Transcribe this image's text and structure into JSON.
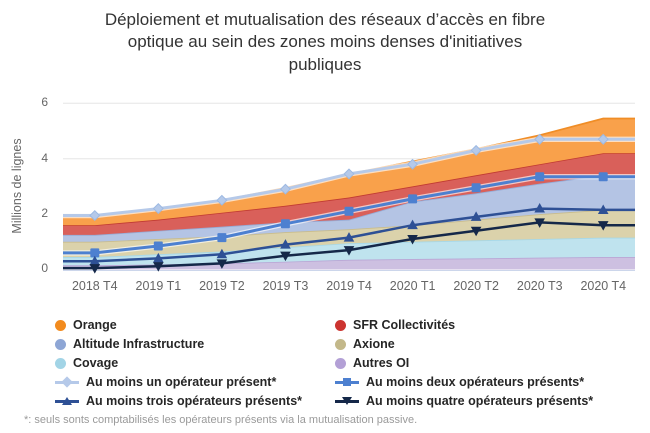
{
  "title": {
    "lines": [
      "Déploiement et mutualisation des réseaux d’accès en fibre",
      "optique au sein des zones moins denses d'initiatives",
      "publiques"
    ]
  },
  "y_axis": {
    "title": "Millions de lignes",
    "ticks": [
      "6",
      "4",
      "2",
      "0"
    ]
  },
  "footnote": "*: seuls sonts comptabilisés les opérateurs présents via la mutualisation passive.",
  "chart_data": {
    "type": "area",
    "stacked": true,
    "title": "Déploiement et mutualisation des réseaux d'accès en fibre optique au sein des zones moins denses d'initiatives publiques",
    "ylabel": "Millions de lignes",
    "ylim": [
      0,
      6
    ],
    "grid": true,
    "legend_position": "bottom",
    "categories": [
      "2018 T4",
      "2019 T1",
      "2019 T2",
      "2019 T3",
      "2019 T4",
      "2020 T1",
      "2020 T2",
      "2020 T3",
      "2020 T4"
    ],
    "area_series": [
      {
        "name": "Autres OI",
        "color": "#b3a0d6",
        "fill": "#cdc0e1",
        "line": "#b9a6d5",
        "values": [
          0.15,
          0.18,
          0.22,
          0.28,
          0.35,
          0.38,
          0.4,
          0.43,
          0.45
        ]
      },
      {
        "name": "Covage",
        "color": "#a2d4e6",
        "fill": "#bfe3ee",
        "line": "#a6d8e8",
        "values": [
          0.3,
          0.37,
          0.43,
          0.52,
          0.6,
          0.62,
          0.65,
          0.67,
          0.7
        ]
      },
      {
        "name": "Axione",
        "color": "#c3b88a",
        "fill": "#dbd2ab",
        "line": "#c9bc8c",
        "values": [
          0.55,
          0.55,
          0.55,
          0.55,
          0.5,
          0.6,
          0.75,
          0.9,
          1.0
        ]
      },
      {
        "name": "Altitude Infrastructure",
        "color": "#8ea6d5",
        "fill": "#b4c4e4",
        "line": "#96abd6",
        "values": [
          0.25,
          0.3,
          0.35,
          0.35,
          0.35,
          0.85,
          0.95,
          1.1,
          1.25
        ]
      },
      {
        "name": "SFR Collectivités",
        "color": "#cc3430",
        "fill": "#d9605a",
        "line": "#c13a32",
        "values": [
          0.35,
          0.4,
          0.5,
          0.6,
          0.8,
          0.55,
          0.65,
          0.7,
          0.8
        ]
      },
      {
        "name": "Orange",
        "color": "#f28b1e",
        "fill": "#f9a14b",
        "line": "#f08d26",
        "values": [
          0.35,
          0.4,
          0.45,
          0.65,
          0.85,
          0.9,
          0.95,
          1.05,
          1.25
        ]
      }
    ],
    "line_series": [
      {
        "name": "Au moins un opérateur présent*",
        "color": "#b5c9e9",
        "marker": "diamond",
        "marker_edge": "#9db9e2",
        "halo": true,
        "width": 3,
        "values": [
          1.95,
          2.2,
          2.5,
          2.9,
          3.45,
          3.8,
          4.3,
          4.7,
          4.7
        ]
      },
      {
        "name": "Au moins deux opérateurs présents*",
        "color": "#4d80d0",
        "marker": "square",
        "halo": true,
        "width": 3,
        "values": [
          0.6,
          0.85,
          1.15,
          1.65,
          2.1,
          2.55,
          2.95,
          3.35,
          3.35
        ]
      },
      {
        "name": "Au moins trois opérateurs présents*",
        "color": "#2e5095",
        "marker": "triangle-up",
        "halo": false,
        "width": 2.5,
        "values": [
          0.3,
          0.4,
          0.55,
          0.9,
          1.15,
          1.6,
          1.9,
          2.2,
          2.15
        ]
      },
      {
        "name": "Au moins quatre opérateurs présents*",
        "color": "#152849",
        "marker": "triangle-down",
        "halo": false,
        "width": 2.5,
        "values": [
          0.05,
          0.12,
          0.22,
          0.5,
          0.7,
          1.1,
          1.4,
          1.7,
          1.6
        ]
      }
    ],
    "colors": {
      "gridline": "#e6e6e6",
      "axis_line": "#ccd6eb"
    }
  }
}
